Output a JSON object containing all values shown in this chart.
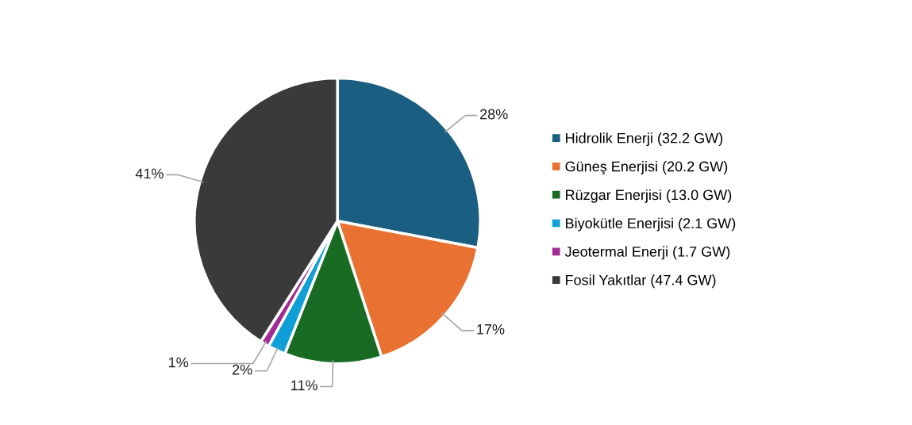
{
  "chart_data": {
    "type": "pie",
    "categories": [
      "Hidrolik Enerji (32.2 GW)",
      "Güneş Enerjisi (20.2 GW)",
      "Rüzgar Enerjisi (13.0 GW)",
      "Biyokütle Enerjisi (2.1 GW)",
      "Jeotermal Enerji (1.7 GW)",
      "Fosil Yakıtlar (47.4 GW)"
    ],
    "values": [
      28,
      17,
      11,
      2,
      1,
      41
    ],
    "value_labels": [
      "28%",
      "17%",
      "11%",
      "2%",
      "1%",
      "41%"
    ],
    "colors": [
      "#1a5e82",
      "#e97132",
      "#196b24",
      "#0f9ed5",
      "#a02b93",
      "#3a3a3a"
    ],
    "legend": "right"
  }
}
